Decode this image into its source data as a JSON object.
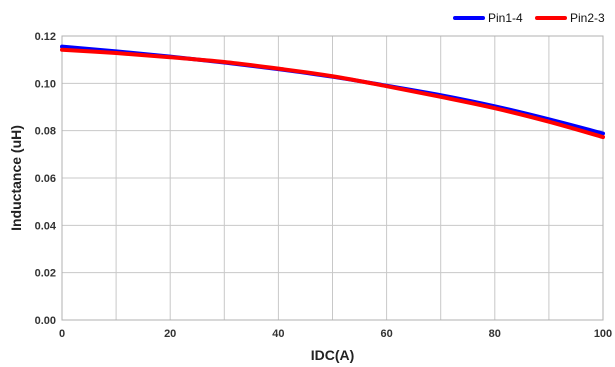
{
  "chart_data": {
    "type": "line",
    "title": "",
    "xlabel": "IDC(A)",
    "ylabel": "Inductance  (uH)",
    "xlim": [
      0,
      100
    ],
    "ylim": [
      0,
      0.12
    ],
    "x_ticks": [
      "0",
      "20",
      "40",
      "60",
      "80",
      "100"
    ],
    "y_ticks": [
      "0.00",
      "0.02",
      "0.04",
      "0.06",
      "0.08",
      "0.10",
      "0.12"
    ],
    "grid": true,
    "legend_position": "top-right",
    "series": [
      {
        "name": "Pin1-4",
        "color": "#0000ff",
        "x": [
          0,
          10,
          20,
          30,
          40,
          50,
          60,
          70,
          80,
          90,
          100
        ],
        "y": [
          0.1155,
          0.1135,
          0.1113,
          0.1088,
          0.106,
          0.1028,
          0.099,
          0.095,
          0.0903,
          0.0848,
          0.0788
        ]
      },
      {
        "name": "Pin2-3",
        "color": "#ff0000",
        "x": [
          0,
          10,
          20,
          30,
          40,
          50,
          60,
          70,
          80,
          90,
          100
        ],
        "y": [
          0.1142,
          0.1128,
          0.111,
          0.109,
          0.1062,
          0.103,
          0.0988,
          0.0943,
          0.0895,
          0.0838,
          0.0773
        ]
      }
    ]
  }
}
